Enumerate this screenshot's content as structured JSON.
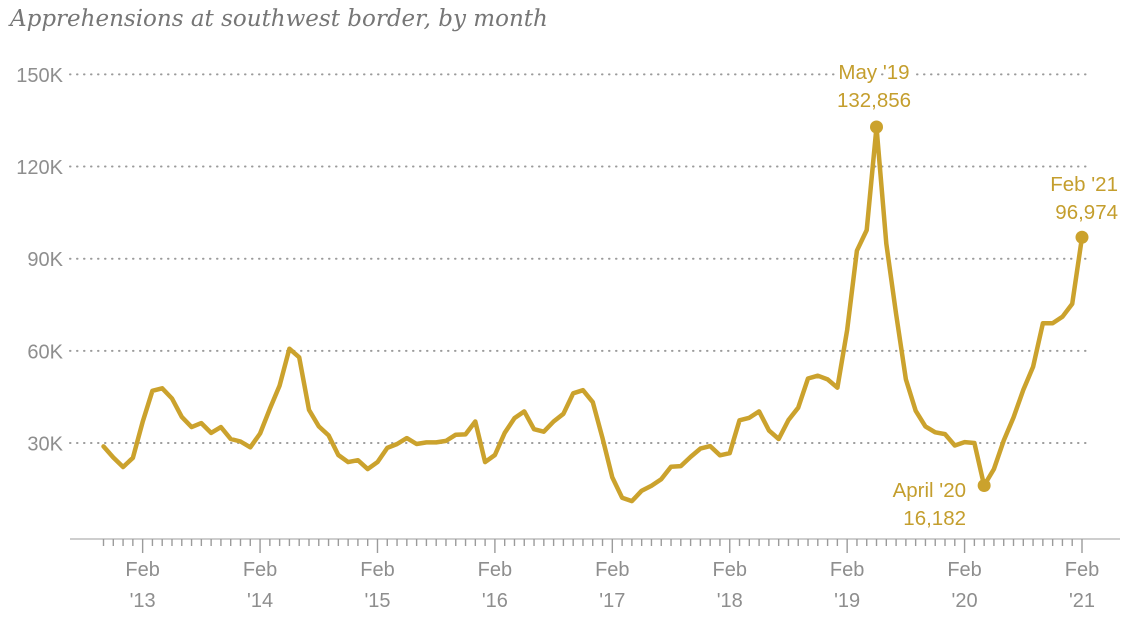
{
  "title": "Apprehensions at southwest border, by month",
  "chart_data": {
    "type": "line",
    "title": "Apprehensions at southwest border, by month",
    "unit": "apprehensions (thousands)",
    "frequency": "monthly",
    "series_start": "Oct 2012",
    "series_end": "Feb 2021",
    "values_thousands": [
      28.9,
      25.3,
      22.2,
      25.2,
      36.8,
      47,
      47.8,
      44.5,
      38.5,
      35.2,
      36.5,
      33.3,
      35.2,
      31.3,
      30.5,
      28.6,
      33.1,
      41.1,
      48.7,
      60.7,
      57.9,
      40.8,
      35.4,
      32.5,
      26.1,
      23.8,
      24.4,
      21.5,
      23.8,
      28.4,
      29.7,
      31.6,
      29.7,
      30.2,
      30.2,
      30.7,
      32.7,
      32.8,
      37,
      23.8,
      26.1,
      33.3,
      38.1,
      40.3,
      34.5,
      33.7,
      37,
      39.5,
      46.2,
      47.2,
      43.3,
      31.6,
      18.8,
      12.2,
      11.1,
      14.5,
      16.1,
      18.2,
      22.3,
      22.5,
      25.5,
      28.2,
      29,
      26,
      26.7,
      37.4,
      38.2,
      40.3,
      34.1,
      31.3,
      37.5,
      41.5,
      51,
      51.9,
      50.7,
      48,
      66.9,
      92.6,
      99.3,
      132.856,
      94.9,
      72,
      50.7,
      40.5,
      35.4,
      33.5,
      32.9,
      29.2,
      30.3,
      30,
      16.182,
      21.5,
      30.8,
      38.3,
      47.3,
      54.8,
      69,
      69,
      71.1,
      75.3,
      96.974
    ],
    "ylim_thousands": [
      0,
      150
    ],
    "y_ticks": [
      "30K",
      "60K",
      "90K",
      "120K",
      "150K"
    ],
    "x_ticks": [
      {
        "top": "Feb",
        "bottom": "'13"
      },
      {
        "top": "Feb",
        "bottom": "'14"
      },
      {
        "top": "Feb",
        "bottom": "'15"
      },
      {
        "top": "Feb",
        "bottom": "'16"
      },
      {
        "top": "Feb",
        "bottom": "'17"
      },
      {
        "top": "Feb",
        "bottom": "'18"
      },
      {
        "top": "Feb",
        "bottom": "'19"
      },
      {
        "top": "Feb",
        "bottom": "'20"
      },
      {
        "top": "Feb",
        "bottom": "'21"
      }
    ],
    "grid": "dotted horizontal",
    "legend": "none",
    "annotations": [
      {
        "line1": "May '19",
        "line2": "132,856",
        "month_index": 79,
        "value": 132856
      },
      {
        "line1": "April '20",
        "line2": "16,182",
        "month_index": 90,
        "value": 16182
      },
      {
        "line1": "Feb '21",
        "line2": "96,974",
        "month_index": 100,
        "value": 96974
      }
    ],
    "colors": {
      "line_gold": "#cba22d",
      "annotation_gold": "#c49e2d",
      "title_gray": "#767676",
      "axis_text_gray": "#8e8e8e",
      "grid_dot_gray": "#9b9b9b",
      "axis_line_gray": "#bdbdbd"
    }
  }
}
